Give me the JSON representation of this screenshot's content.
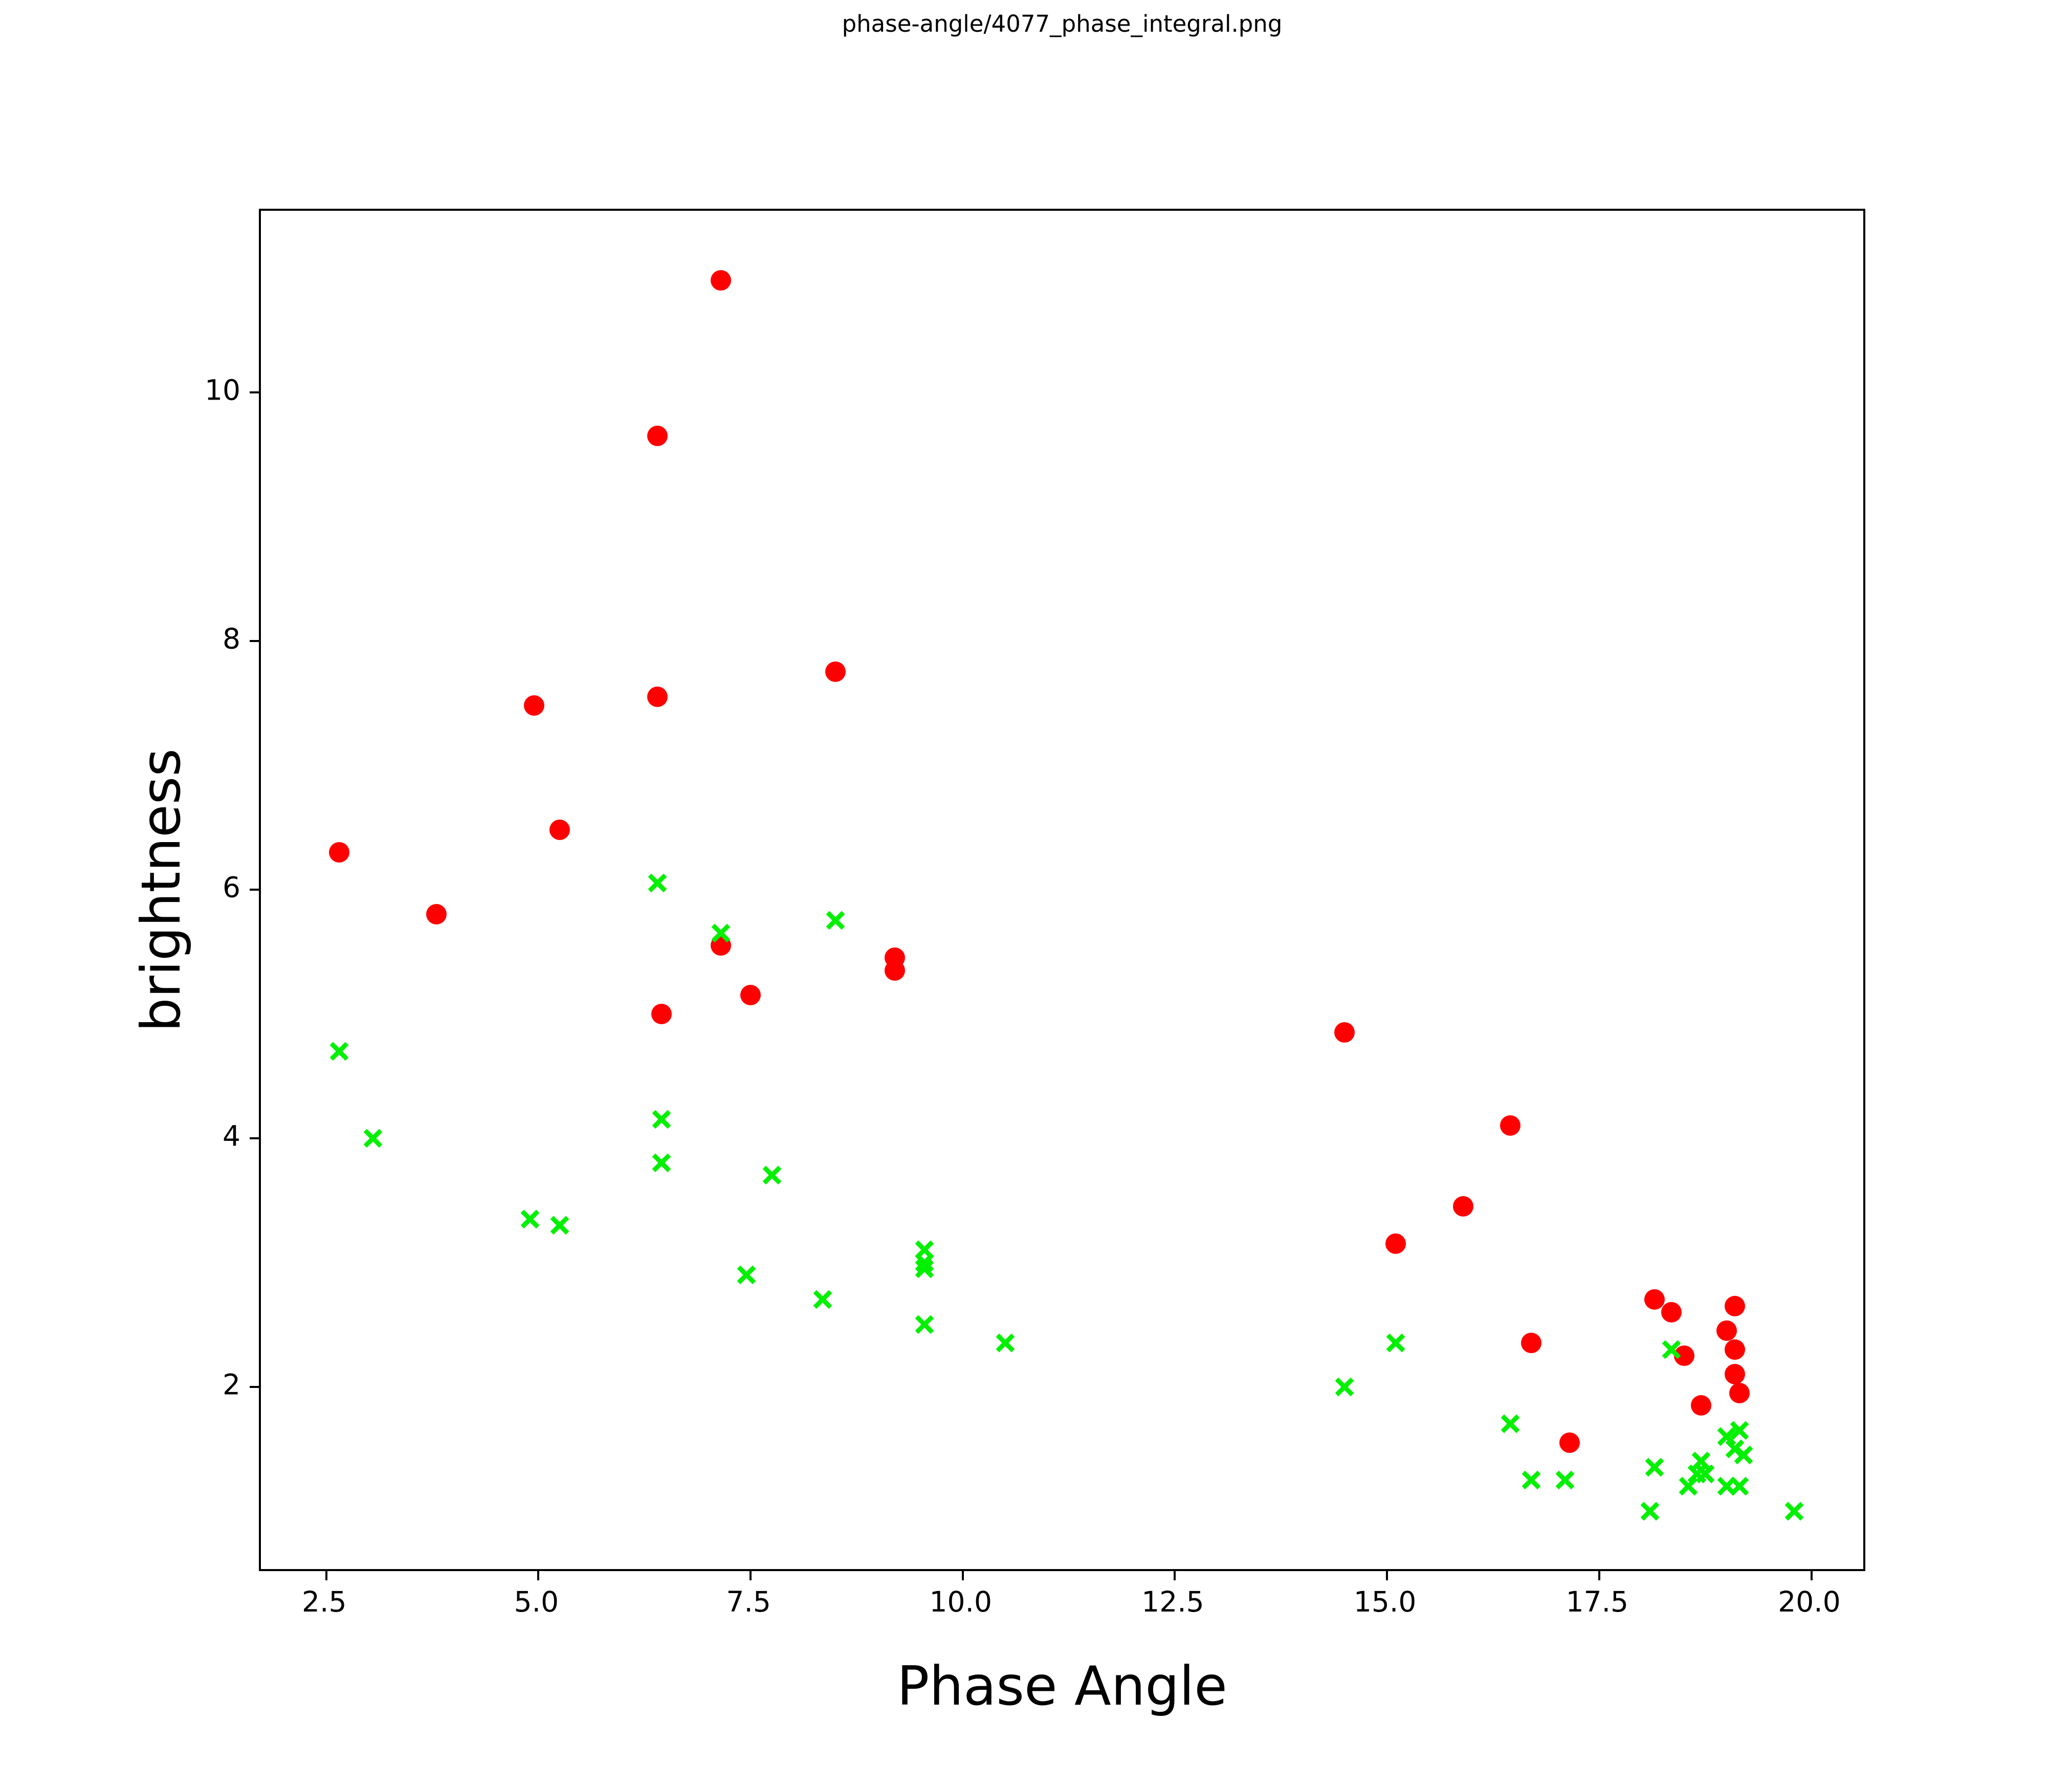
{
  "title": "phase-angle/4077_phase_integral.png",
  "colors": {
    "red_series": "#ff0000",
    "green_series": "#00f000",
    "axis": "#000000",
    "background": "#ffffff"
  },
  "chart_data": {
    "type": "scatter",
    "title": "phase-angle/4077_phase_integral.png",
    "xlabel": "Phase Angle",
    "ylabel": "brightness",
    "xlim": [
      1.73,
      20.66
    ],
    "ylim": [
      0.5,
      11.46
    ],
    "grid": false,
    "legend_position": "none",
    "x_ticks": {
      "values": [
        2.5,
        5.0,
        7.5,
        10.0,
        12.5,
        15.0,
        17.5,
        20.0
      ],
      "labels": [
        "2.5",
        "5.0",
        "7.5",
        "10.0",
        "12.5",
        "15.0",
        "17.5",
        "20.0"
      ]
    },
    "y_ticks": {
      "values": [
        2,
        4,
        6,
        8,
        10
      ],
      "labels": [
        "2",
        "4",
        "6",
        "8",
        "10"
      ]
    },
    "series": [
      {
        "name": "red-circles",
        "marker": "circle",
        "color": "#ff0000",
        "points": [
          [
            7.15,
            10.9
          ],
          [
            6.4,
            9.65
          ],
          [
            4.95,
            7.48
          ],
          [
            6.4,
            7.55
          ],
          [
            8.5,
            7.75
          ],
          [
            5.25,
            6.48
          ],
          [
            2.65,
            6.3
          ],
          [
            3.8,
            5.8
          ],
          [
            7.15,
            5.55
          ],
          [
            7.5,
            5.15
          ],
          [
            6.45,
            5.0
          ],
          [
            9.2,
            5.45
          ],
          [
            9.2,
            5.35
          ],
          [
            14.5,
            4.85
          ],
          [
            16.45,
            4.1
          ],
          [
            15.9,
            3.45
          ],
          [
            15.1,
            3.15
          ],
          [
            16.7,
            2.35
          ],
          [
            17.15,
            1.55
          ],
          [
            18.15,
            2.7
          ],
          [
            18.35,
            2.6
          ],
          [
            18.5,
            2.25
          ],
          [
            18.7,
            1.85
          ],
          [
            19.1,
            2.65
          ],
          [
            19.0,
            2.45
          ],
          [
            19.1,
            2.3
          ],
          [
            19.1,
            2.1
          ],
          [
            19.15,
            1.95
          ]
        ]
      },
      {
        "name": "green-crosses",
        "marker": "x",
        "color": "#00f000",
        "points": [
          [
            2.65,
            4.7
          ],
          [
            3.05,
            4.0
          ],
          [
            4.9,
            3.35
          ],
          [
            5.25,
            3.3
          ],
          [
            6.4,
            6.05
          ],
          [
            6.45,
            4.15
          ],
          [
            6.45,
            3.8
          ],
          [
            7.15,
            5.65
          ],
          [
            7.75,
            3.7
          ],
          [
            7.45,
            2.9
          ],
          [
            8.35,
            2.7
          ],
          [
            8.5,
            5.75
          ],
          [
            9.55,
            3.1
          ],
          [
            9.55,
            3.0
          ],
          [
            9.55,
            2.95
          ],
          [
            9.55,
            2.5
          ],
          [
            10.5,
            2.35
          ],
          [
            14.5,
            2.0
          ],
          [
            15.1,
            2.35
          ],
          [
            16.45,
            1.7
          ],
          [
            16.7,
            1.25
          ],
          [
            17.1,
            1.25
          ],
          [
            18.15,
            1.35
          ],
          [
            18.1,
            1.0
          ],
          [
            18.35,
            2.3
          ],
          [
            18.55,
            1.2
          ],
          [
            18.65,
            1.3
          ],
          [
            18.75,
            1.3
          ],
          [
            18.7,
            1.4
          ],
          [
            19.0,
            1.6
          ],
          [
            19.15,
            1.65
          ],
          [
            19.1,
            1.5
          ],
          [
            19.2,
            1.45
          ],
          [
            19.0,
            1.2
          ],
          [
            19.15,
            1.2
          ],
          [
            19.8,
            1.0
          ]
        ]
      }
    ]
  }
}
